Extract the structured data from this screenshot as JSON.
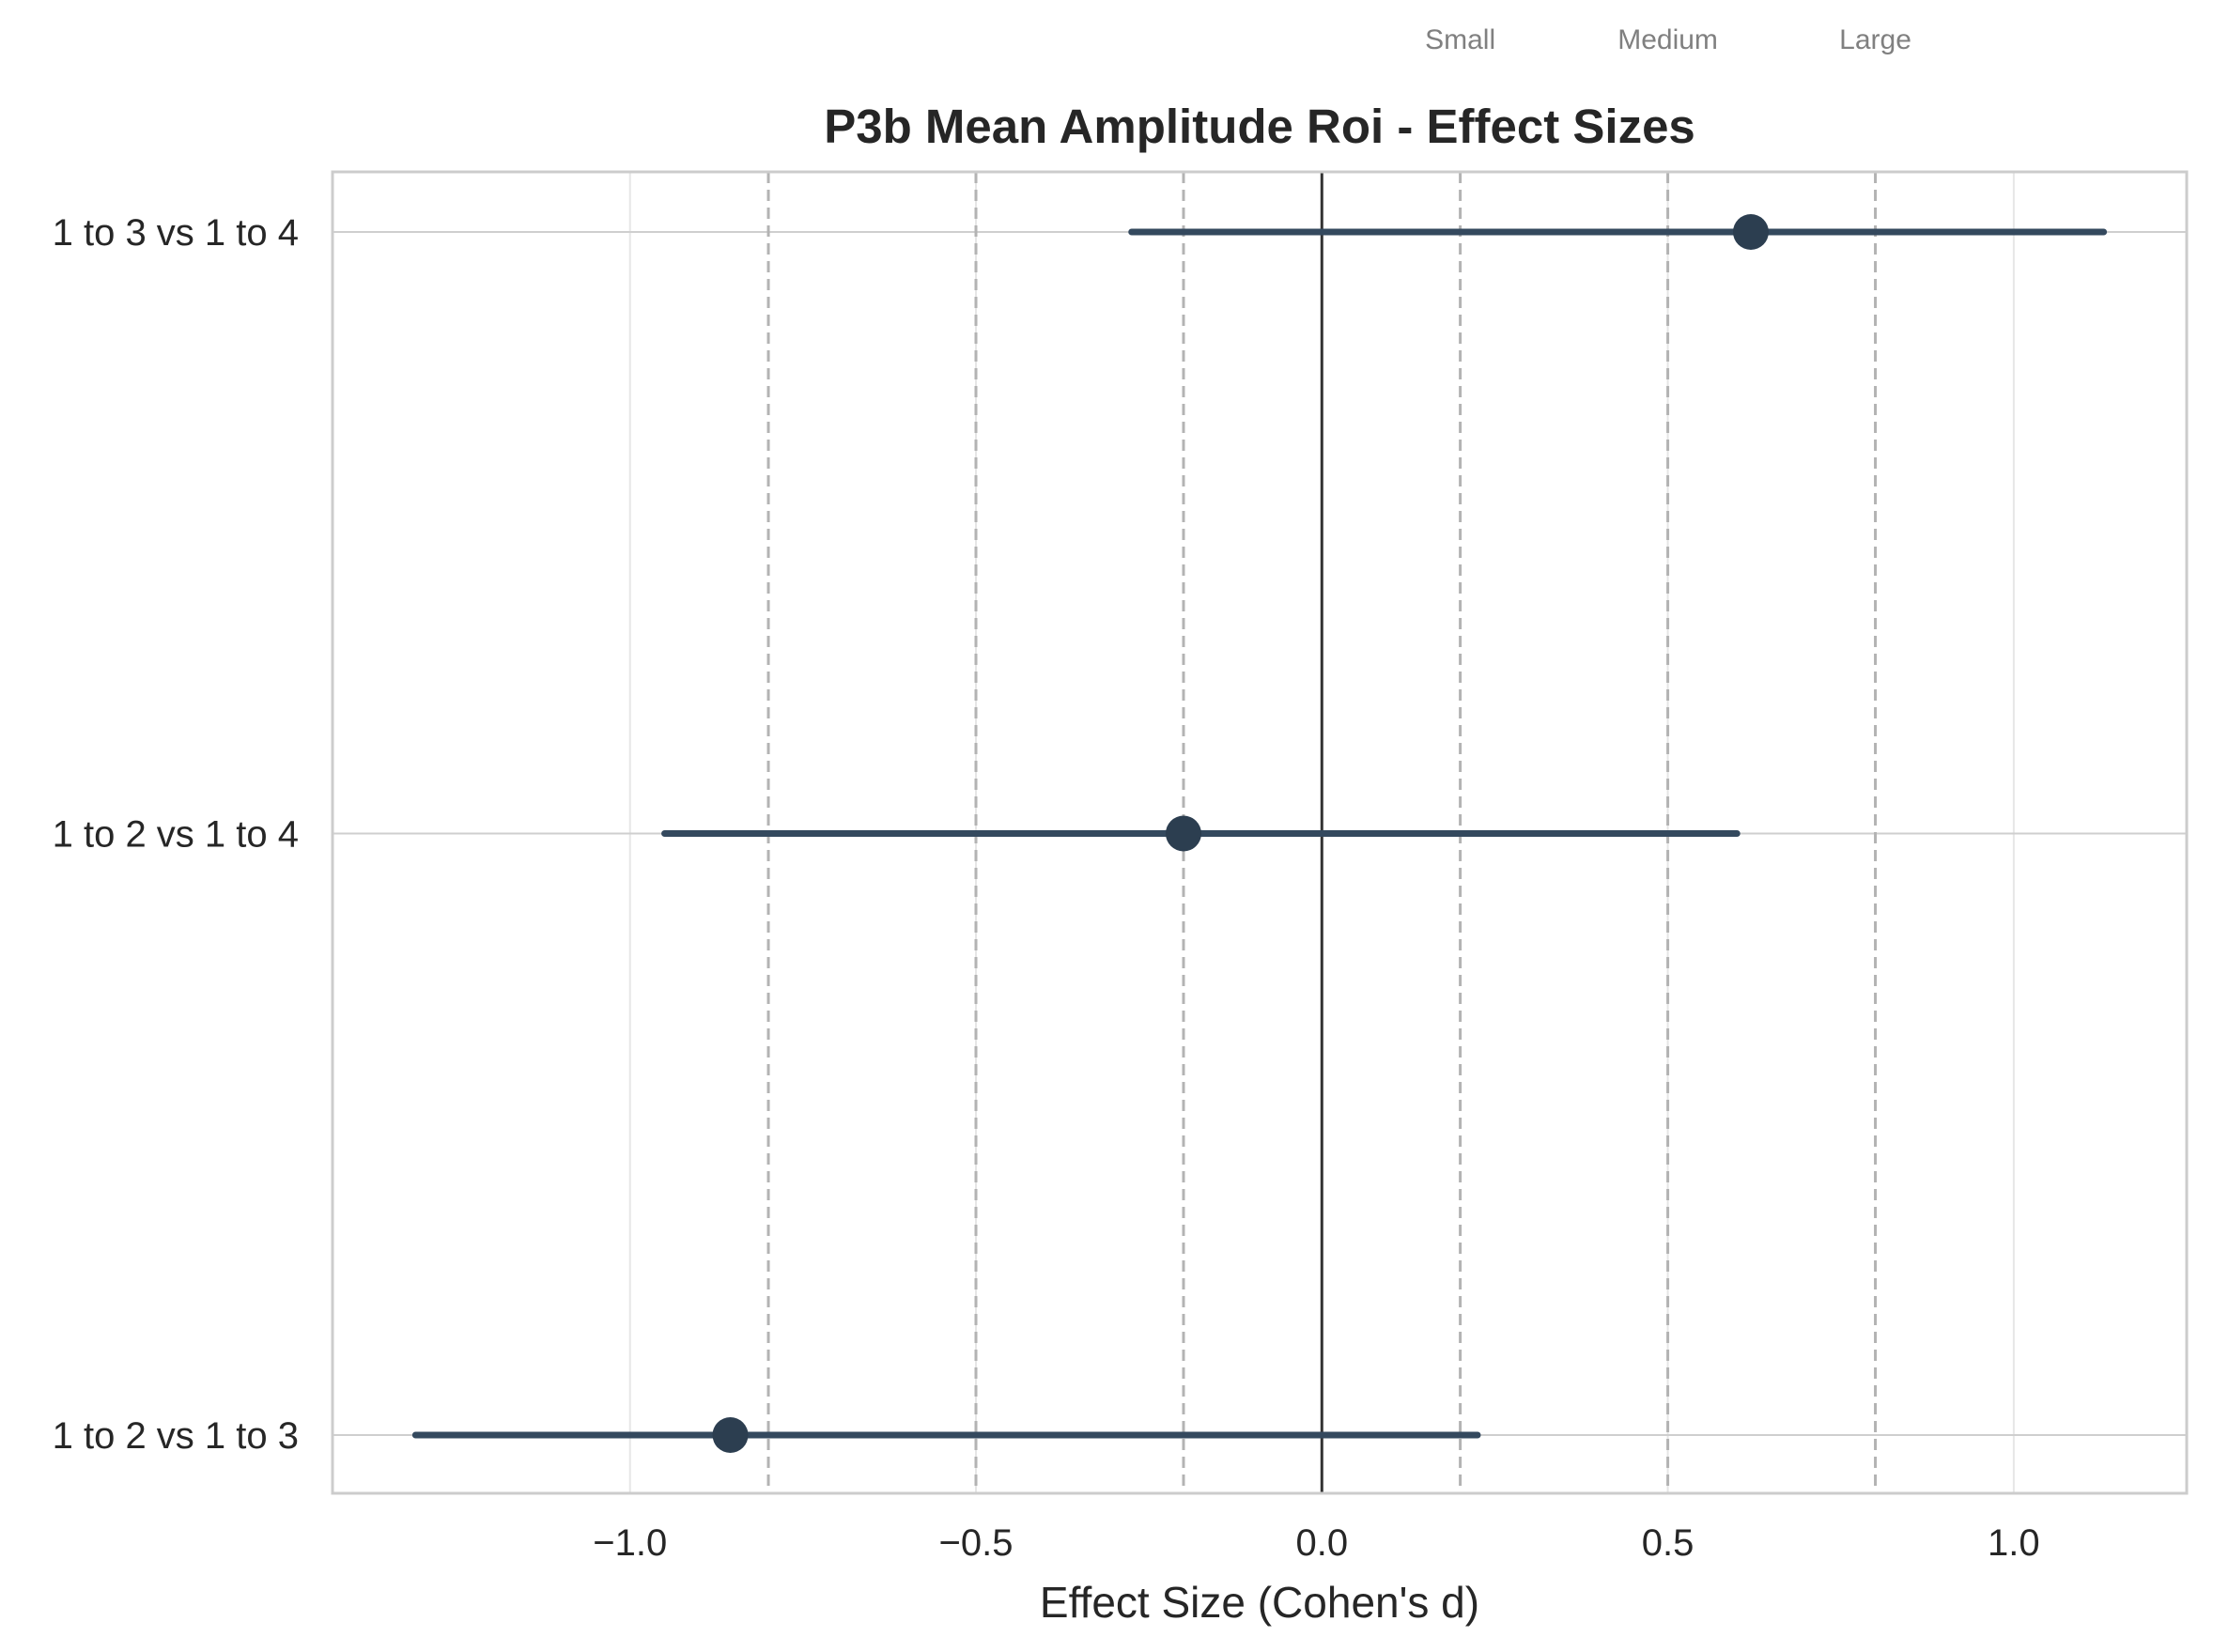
{
  "chart_data": {
    "type": "forest",
    "title": "P3b Mean Amplitude Roi - Effect Sizes",
    "xlabel": "Effect Size (Cohen's d)",
    "ylabel": "",
    "xlim": [
      -1.43,
      1.25
    ],
    "xticks": [
      -1.0,
      -0.5,
      0.0,
      0.5,
      1.0
    ],
    "xtick_labels": [
      "−1.0",
      "−0.5",
      "0.0",
      "0.5",
      "1.0"
    ],
    "grid": true,
    "categories": [
      "1 to 3 vs 1 to 4",
      "1 to 2 vs 1 to 4",
      "1 to 2 vs 1 to 3"
    ],
    "effects": [
      0.62,
      -0.2,
      -0.855
    ],
    "ci_lower": [
      -0.275,
      -0.95,
      -1.31
    ],
    "ci_upper": [
      1.13,
      0.6,
      0.225
    ],
    "zero_line": 0.0,
    "reference_lines": [
      {
        "value": -0.8,
        "label": ""
      },
      {
        "value": -0.5,
        "label": ""
      },
      {
        "value": -0.2,
        "label": ""
      },
      {
        "value": 0.2,
        "label": "Small"
      },
      {
        "value": 0.5,
        "label": "Medium"
      },
      {
        "value": 0.8,
        "label": "Large"
      }
    ],
    "colors": {
      "point": "#2c3e50",
      "ci_line": "#34495e",
      "zero_line": "#333333",
      "reference_line": "#b3b3b3",
      "grid": "#e6e6e6",
      "frame": "#cccccc",
      "reference_label": "#808080"
    }
  }
}
